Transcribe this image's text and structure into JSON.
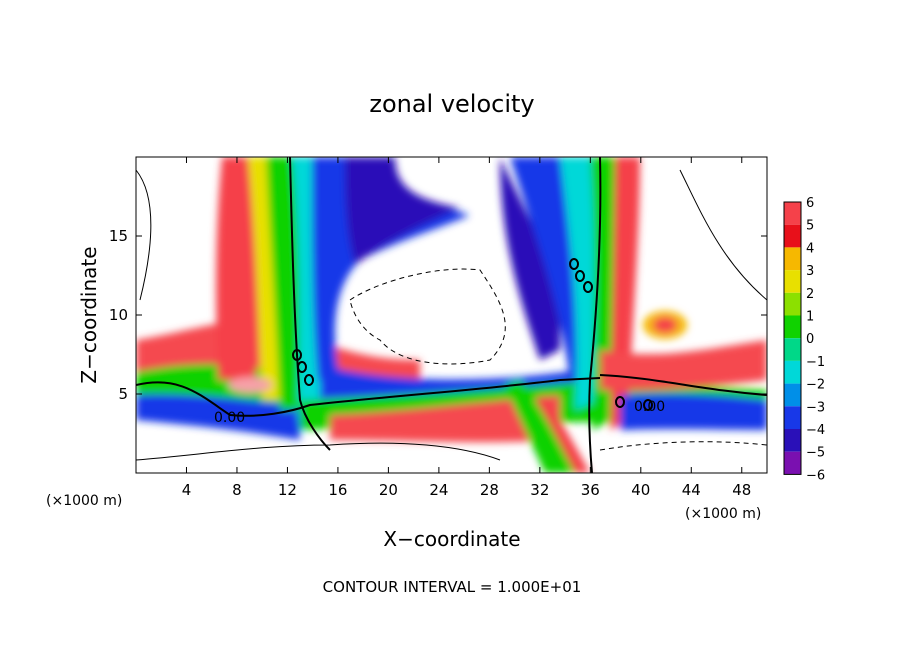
{
  "chart_data": {
    "type": "heatmap",
    "title": "zonal velocity",
    "xlabel": "X−coordinate",
    "ylabel": "Z−coordinate",
    "x_unit_label_left": "(×1000 m)",
    "x_unit_label_right": "(×1000 m)",
    "footer": "CONTOUR INTERVAL = 1.000E+01",
    "xlim": [
      0,
      50
    ],
    "ylim": [
      0,
      20
    ],
    "x_ticks": [
      4,
      8,
      12,
      16,
      20,
      24,
      28,
      32,
      36,
      40,
      44,
      48
    ],
    "y_ticks": [
      5,
      10,
      15
    ],
    "colorbar": {
      "levels": [
        6,
        5,
        4,
        3,
        2,
        1,
        0,
        -1,
        -2,
        -3,
        -4,
        -5,
        -6
      ],
      "labels": [
        "6",
        "5",
        "4",
        "3",
        "2",
        "1",
        "0",
        "−1",
        "−2",
        "−3",
        "−4",
        "−5",
        "−6"
      ],
      "colors": [
        "#f7a0a8",
        "#f5414a",
        "#e8101a",
        "#f6b800",
        "#e8e000",
        "#8ce000",
        "#10d200",
        "#00d888",
        "#00d8d8",
        "#008fe8",
        "#1838e8",
        "#2a10b8",
        "#7a10b0"
      ]
    },
    "contour_labels": [
      "0.00",
      "0.00",
      "0",
      "0",
      "0"
    ],
    "contour_interval": "1.000E+01"
  }
}
